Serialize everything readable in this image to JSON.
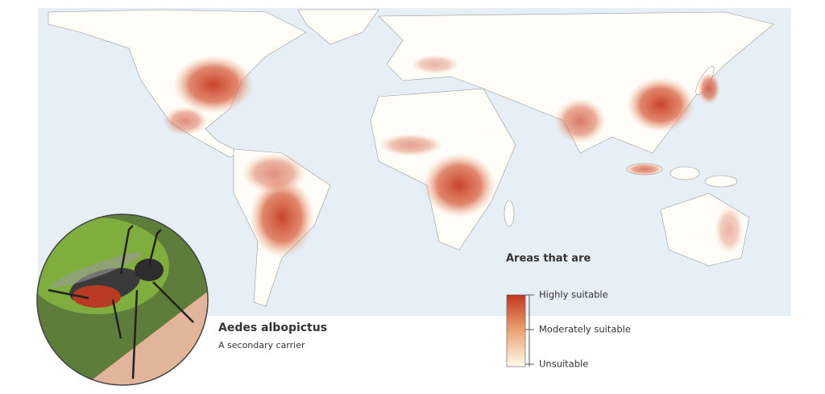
{
  "legend": {
    "title": "Areas that are",
    "levels": [
      "Highly suitable",
      "Moderately suitable",
      "Unsuitable"
    ]
  },
  "caption": {
    "species": "Aedes albopictus",
    "description": "A secondary carrier"
  }
}
